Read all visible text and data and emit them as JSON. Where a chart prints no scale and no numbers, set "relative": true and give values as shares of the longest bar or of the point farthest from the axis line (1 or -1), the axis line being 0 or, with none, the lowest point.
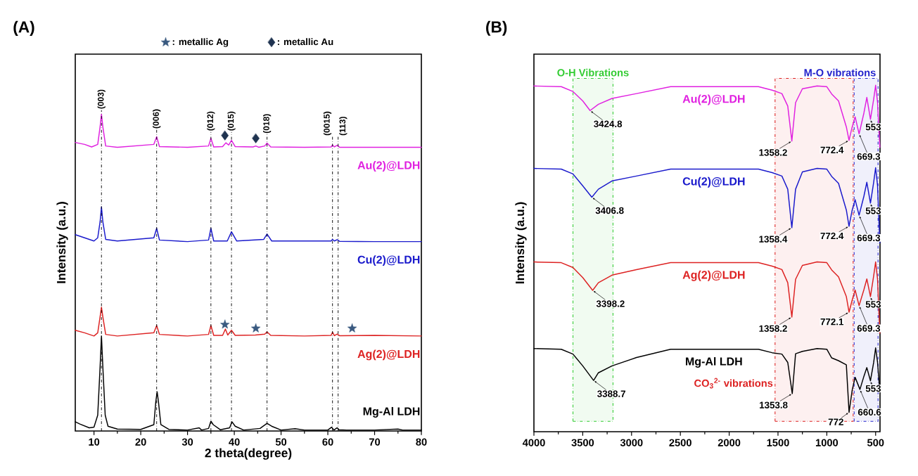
{
  "chart_data": [
    {
      "type": "line",
      "title": "(A)",
      "xlabel": "2 theta(degree)",
      "ylabel": "Intensity (a.u.)",
      "relative": true,
      "xlim": [
        6,
        80
      ],
      "xticks": [
        10,
        20,
        30,
        40,
        50,
        60,
        70,
        80
      ],
      "legend": "top",
      "series": [
        {
          "name": "Mg-Al LDH",
          "color": "#000000",
          "x": [
            6,
            7,
            8,
            9,
            10,
            10.8,
            11.3,
            11.6,
            11.9,
            12.4,
            13,
            15,
            20,
            22.8,
            23.2,
            23.5,
            23.8,
            24.3,
            26,
            30,
            32.5,
            33,
            34.5,
            35,
            35.5,
            37,
            39,
            39.5,
            40.2,
            42,
            45.5,
            47,
            48,
            50,
            53,
            55,
            60,
            60.8,
            61.3,
            62,
            62.4,
            64,
            70,
            75,
            76,
            80
          ],
          "values": [
            0.029,
            0.022,
            0.016,
            0.01,
            0.012,
            0.05,
            0.2,
            0.3,
            0.2,
            0.05,
            0.015,
            0.006,
            0.005,
            0.02,
            0.09,
            0.124,
            0.09,
            0.02,
            0.005,
            0.003,
            0.01,
            0.003,
            0.008,
            0.031,
            0.02,
            0.004,
            0.01,
            0.029,
            0.015,
            0.003,
            0.008,
            0.024,
            0.015,
            0.003,
            0.007,
            0.003,
            0.003,
            0.012,
            0.003,
            0.01,
            0.004,
            0.003,
            0.003,
            0.006,
            0.003,
            0.003
          ]
        },
        {
          "name": "Ag(2)@LDH",
          "color": "#dd2222",
          "x": [
            6,
            8,
            10,
            10.8,
            11.3,
            11.6,
            11.9,
            12.5,
            15,
            22.8,
            23.4,
            24,
            30,
            34.5,
            35,
            35.6,
            37.5,
            38.1,
            38.6,
            39.4,
            40.2,
            44.5,
            46.5,
            47,
            47.8,
            55,
            60.7,
            61,
            61.4,
            62,
            62.5,
            70,
            80
          ],
          "values": [
            0.318,
            0.31,
            0.3,
            0.31,
            0.36,
            0.391,
            0.36,
            0.305,
            0.3,
            0.31,
            0.333,
            0.305,
            0.3,
            0.305,
            0.333,
            0.302,
            0.302,
            0.322,
            0.303,
            0.318,
            0.302,
            0.303,
            0.306,
            0.313,
            0.302,
            0.3,
            0.302,
            0.312,
            0.301,
            0.306,
            0.301,
            0.302,
            0.3
          ]
        },
        {
          "name": "Cu(2)@LDH",
          "color": "#1a1acc",
          "x": [
            6,
            8,
            10,
            10.8,
            11.3,
            11.6,
            11.9,
            12.5,
            15,
            22.8,
            23.4,
            24,
            30,
            34.5,
            35,
            35.6,
            38.5,
            39.4,
            40.5,
            46.3,
            47,
            48,
            55,
            60.7,
            61,
            61.4,
            62,
            62.5,
            70,
            80
          ],
          "values": [
            0.62,
            0.61,
            0.6,
            0.61,
            0.66,
            0.707,
            0.66,
            0.605,
            0.6,
            0.61,
            0.64,
            0.603,
            0.598,
            0.603,
            0.64,
            0.6,
            0.6,
            0.629,
            0.6,
            0.605,
            0.622,
            0.6,
            0.6,
            0.6,
            0.605,
            0.6,
            0.604,
            0.599,
            0.598,
            0.598
          ]
        },
        {
          "name": "Au(2)@LDH",
          "color": "#e020e0",
          "x": [
            6,
            8,
            9.5,
            10.8,
            11.3,
            11.6,
            11.9,
            12.5,
            15,
            22.8,
            23.4,
            24,
            30,
            34.5,
            35,
            35.6,
            37.5,
            38.2,
            38.8,
            39.4,
            40.2,
            44,
            44.6,
            45.2,
            46.5,
            47,
            47.8,
            55,
            60.7,
            61,
            61.4,
            62,
            62.5,
            70,
            80
          ],
          "values": [
            0.911,
            0.905,
            0.897,
            0.905,
            0.96,
            1.0,
            0.96,
            0.9,
            0.896,
            0.905,
            0.929,
            0.898,
            0.896,
            0.9,
            0.924,
            0.897,
            0.898,
            0.91,
            0.903,
            0.918,
            0.898,
            0.897,
            0.9,
            0.896,
            0.9,
            0.909,
            0.897,
            0.896,
            0.897,
            0.903,
            0.897,
            0.902,
            0.896,
            0.896,
            0.896
          ]
        },
        {
          "name": ": metallic Ag",
          "type": "scatter",
          "marker": "star",
          "color": "#3a5a80",
          "x": [
            38.0,
            44.6,
            65.2
          ],
          "values": [
            0.336,
            0.324,
            0.324
          ]
        },
        {
          "name": ": metallic Au",
          "type": "scatter",
          "marker": "diamond",
          "color": "#1f3350",
          "x": [
            38.0,
            44.6
          ],
          "values": [
            0.933,
            0.924
          ]
        }
      ],
      "ref_lines": [
        {
          "axis": "x",
          "value": 11.6
        },
        {
          "axis": "x",
          "value": 23.4
        },
        {
          "axis": "x",
          "value": 35.0
        },
        {
          "axis": "x",
          "value": 39.4
        },
        {
          "axis": "x",
          "value": 47.0
        },
        {
          "axis": "x",
          "value": 61.0
        },
        {
          "axis": "x",
          "value": 62.2
        }
      ],
      "annotations": [
        {
          "text": "(003)",
          "x": 11.6,
          "y": 1.013
        },
        {
          "text": "(006)",
          "x": 23.4,
          "y": 0.951
        },
        {
          "text": "(012)",
          "x": 35.0,
          "y": 0.944
        },
        {
          "text": "(015)",
          "x": 39.4,
          "y": 0.944
        },
        {
          "text": "(018)",
          "x": 47.0,
          "y": 0.936
        },
        {
          "text": "(0015)",
          "x": 61.0,
          "y": 0.929
        },
        {
          "text": "(113)",
          "x": 62.2,
          "y": 0.929
        }
      ]
    },
    {
      "type": "line",
      "title": "(B)",
      "ylabel": "Intensity (a.u.)",
      "relative": true,
      "xlim": [
        4000,
        455
      ],
      "xticks": [
        4000,
        3500,
        3000,
        2500,
        2000,
        1500,
        1000,
        500
      ],
      "series": [
        {
          "name": "Au(2)@LDH",
          "color": "#e020e0",
          "x": [
            4000,
            3720,
            3600,
            3500,
            3424.8,
            3340,
            3200,
            2950,
            2600,
            1700,
            1560,
            1460,
            1400,
            1358.2,
            1320,
            1250,
            1100,
            1000,
            950,
            880,
            800,
            772.4,
            740,
            710,
            669.3,
            620,
            590,
            553,
            520,
            500,
            480,
            457
          ],
          "values": [
            0.998,
            0.996,
            0.982,
            0.955,
            0.927,
            0.945,
            0.962,
            0.976,
            0.996,
            0.996,
            0.986,
            0.976,
            0.94,
            0.839,
            0.95,
            0.99,
            0.998,
            0.996,
            0.975,
            0.955,
            0.88,
            0.841,
            0.88,
            0.909,
            0.86,
            0.92,
            0.965,
            0.902,
            0.96,
            1.0,
            0.95,
            0.821
          ]
        },
        {
          "name": "Cu(2)@LDH",
          "color": "#1a1acc",
          "x": [
            4000,
            3720,
            3600,
            3500,
            3406.8,
            3340,
            3200,
            2950,
            2600,
            1700,
            1560,
            1460,
            1400,
            1358.4,
            1320,
            1250,
            1100,
            1000,
            950,
            880,
            800,
            772.4,
            740,
            710,
            669.3,
            620,
            590,
            553,
            520,
            500,
            480,
            457
          ],
          "values": [
            0.76,
            0.758,
            0.744,
            0.71,
            0.677,
            0.7,
            0.724,
            0.738,
            0.758,
            0.758,
            0.748,
            0.738,
            0.7,
            0.589,
            0.7,
            0.75,
            0.76,
            0.758,
            0.737,
            0.717,
            0.64,
            0.593,
            0.64,
            0.67,
            0.625,
            0.68,
            0.72,
            0.66,
            0.72,
            0.762,
            0.71,
            0.545
          ]
        },
        {
          "name": "Ag(2)@LDH",
          "color": "#dd2222",
          "x": [
            4000,
            3720,
            3600,
            3500,
            3398.2,
            3340,
            3200,
            2950,
            2600,
            1700,
            1560,
            1460,
            1400,
            1358.2,
            1320,
            1250,
            1100,
            1000,
            950,
            880,
            800,
            772.1,
            740,
            710,
            669.3,
            620,
            590,
            553,
            520,
            500,
            480,
            457
          ],
          "values": [
            0.49,
            0.488,
            0.474,
            0.445,
            0.408,
            0.43,
            0.452,
            0.468,
            0.488,
            0.488,
            0.478,
            0.468,
            0.43,
            0.331,
            0.44,
            0.48,
            0.49,
            0.488,
            0.467,
            0.447,
            0.39,
            0.345,
            0.38,
            0.409,
            0.364,
            0.41,
            0.441,
            0.39,
            0.45,
            0.49,
            0.44,
            0.284
          ]
        },
        {
          "name": "Mg-Al LDH",
          "color": "#000000",
          "x": [
            4000,
            3720,
            3600,
            3500,
            3388.7,
            3340,
            3200,
            2950,
            2600,
            1700,
            1560,
            1460,
            1400,
            1353.8,
            1320,
            1250,
            1100,
            1000,
            950,
            880,
            800,
            772,
            740,
            710,
            660.6,
            620,
            590,
            553,
            520,
            500,
            480,
            457
          ],
          "values": [
            0.24,
            0.238,
            0.224,
            0.19,
            0.148,
            0.17,
            0.19,
            0.214,
            0.238,
            0.238,
            0.228,
            0.224,
            0.2,
            0.11,
            0.225,
            0.232,
            0.24,
            0.238,
            0.213,
            0.205,
            0.193,
            0.056,
            0.12,
            0.157,
            0.122,
            0.16,
            0.185,
            0.147,
            0.2,
            0.242,
            0.2,
            0.116
          ]
        }
      ],
      "bands": [
        {
          "axis": "x",
          "from": 3600,
          "to": 3190,
          "label": "O-H Vibrations",
          "color": "#33cc33"
        },
        {
          "axis": "x",
          "from": 1530,
          "to": 730,
          "label": "CO$_{3}$$^{2-}$ vibrations",
          "color": "#dd2222"
        },
        {
          "axis": "x",
          "from": 720,
          "to": 475,
          "label": "M-O vibrations",
          "color": "#2222cc"
        }
      ],
      "annotations": [
        {
          "text": "3424.8",
          "x": 3424.8,
          "y": 0.927
        },
        {
          "text": "1358.2",
          "x": 1358.2,
          "y": 0.839
        },
        {
          "text": "772.4",
          "x": 772.4,
          "y": 0.841
        },
        {
          "text": "669.3",
          "x": 669.3,
          "y": 0.86
        },
        {
          "text": "553",
          "x": 553,
          "y": 0.902
        },
        {
          "text": "3406.8",
          "x": 3406.8,
          "y": 0.677
        },
        {
          "text": "1358.4",
          "x": 1358.4,
          "y": 0.589
        },
        {
          "text": "772.4",
          "x": 772.4,
          "y": 0.593
        },
        {
          "text": "669.3",
          "x": 669.3,
          "y": 0.625
        },
        {
          "text": "553",
          "x": 553,
          "y": 0.66
        },
        {
          "text": "3398.2",
          "x": 3398.2,
          "y": 0.408
        },
        {
          "text": "1358.2",
          "x": 1358.2,
          "y": 0.331
        },
        {
          "text": "772.1",
          "x": 772.1,
          "y": 0.345
        },
        {
          "text": "669.3",
          "x": 669.3,
          "y": 0.364
        },
        {
          "text": "553",
          "x": 553,
          "y": 0.39
        },
        {
          "text": "3388.7",
          "x": 3388.7,
          "y": 0.148
        },
        {
          "text": "1353.8",
          "x": 1353.8,
          "y": 0.11
        },
        {
          "text": "772",
          "x": 772,
          "y": 0.056
        },
        {
          "text": "660.6",
          "x": 660.6,
          "y": 0.122
        },
        {
          "text": "553",
          "x": 553,
          "y": 0.147
        }
      ]
    }
  ]
}
